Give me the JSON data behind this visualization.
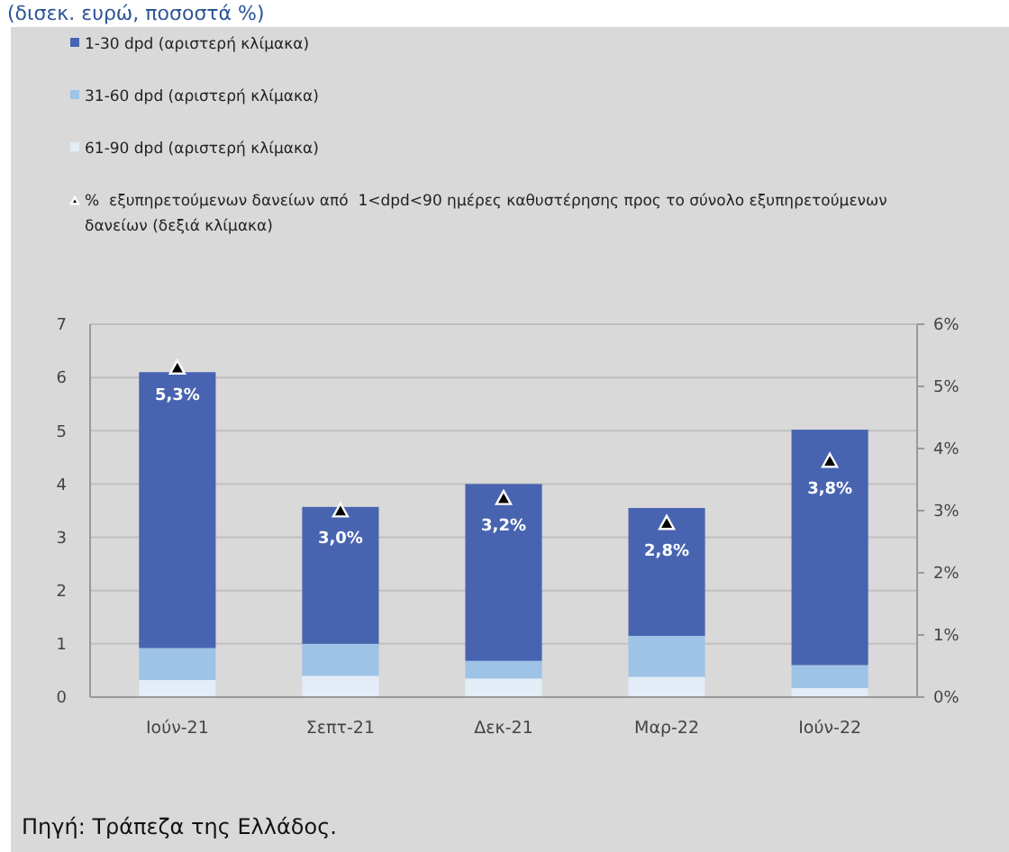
{
  "chart_data": {
    "type": "bar",
    "subtitle": "(δισεκ. ευρώ, ποσοστά %)",
    "stacked": true,
    "categories": [
      "Ιούν-21",
      "Σεπτ-21",
      "Δεκ-21",
      "Μαρ-22",
      "Ιούν-22"
    ],
    "series": [
      {
        "name": "61-90 dpd (αριστερή κλίμακα)",
        "color": "#e3edf8",
        "values": [
          0.32,
          0.4,
          0.35,
          0.38,
          0.17
        ]
      },
      {
        "name": "31-60 dpd (αριστερή κλίμακα)",
        "color": "#9dc3e6",
        "values": [
          0.6,
          0.6,
          0.33,
          0.77,
          0.43
        ]
      },
      {
        "name": "1-30 dpd (αριστερή κλίμακα)",
        "color": "#4864b0",
        "values": [
          5.18,
          2.57,
          3.32,
          2.4,
          4.42
        ]
      },
      {
        "name": "%  εξυπηρετούμενων δανείων από  1<dpd<90 ημέρες καθυστέρησης προς το σύνολο εξυπηρετούμενων δανείων (δεξιά κλίμακα)",
        "type": "scatter",
        "axis": "y2",
        "marker": "triangle",
        "color": "#000000",
        "values": [
          5.3,
          3.0,
          3.2,
          2.8,
          3.8
        ],
        "value_labels": [
          "5,3%",
          "3,0%",
          "3,2%",
          "2,8%",
          "3,8%"
        ]
      }
    ],
    "ylim": [
      0,
      7
    ],
    "yticks": [
      0,
      1,
      2,
      3,
      4,
      5,
      6,
      7
    ],
    "y2lim": [
      0,
      6
    ],
    "y2ticks": [
      {
        "value": 0,
        "label": "0%"
      },
      {
        "value": 1,
        "label": "1%"
      },
      {
        "value": 2,
        "label": "2%"
      },
      {
        "value": 3,
        "label": "3%"
      },
      {
        "value": 4,
        "label": "4%"
      },
      {
        "value": 5,
        "label": "5%"
      },
      {
        "value": 6,
        "label": "6%"
      }
    ],
    "grid": "y",
    "legend": "top",
    "annotations": [
      "Πηγή: Τράπεζα της Ελλάδος."
    ]
  }
}
